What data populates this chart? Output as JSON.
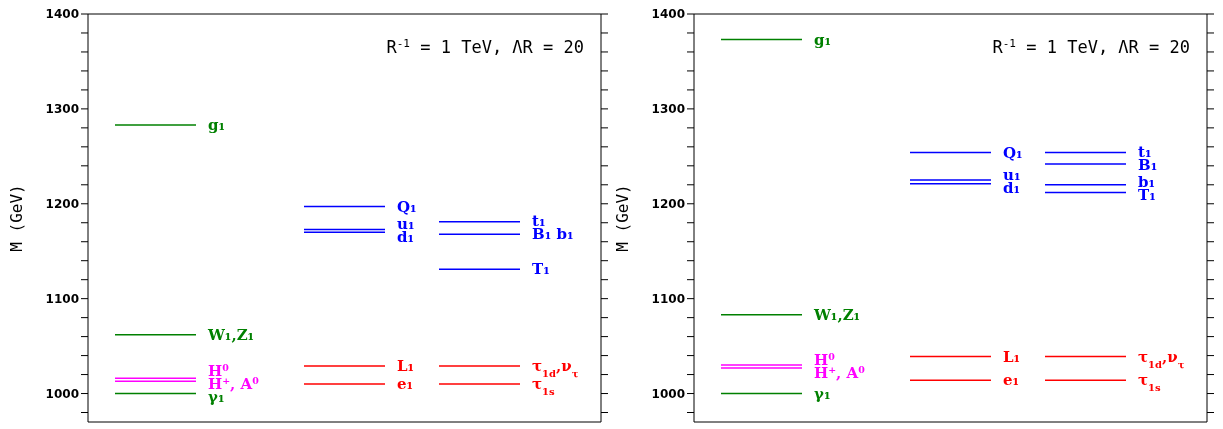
{
  "chart_data": [
    {
      "type": "line",
      "ylabel": "M (GeV)",
      "annotations": [
        "R$^{-1}$ = 1 TeV, ΛR = 20"
      ],
      "categories": [
        null,
        null,
        null,
        null,
        null,
        null,
        null,
        null,
        null,
        null,
        null,
        null,
        null,
        null,
        null,
        null,
        null,
        null,
        null,
        null
      ],
      "ylim": [
        970,
        1400
      ],
      "tick_labels": "y",
      "marker": "none",
      "line_style": "solid",
      "yticks": [
        {
          "value": 980,
          "label": null
        },
        1000,
        {
          "value": 1020,
          "label": null
        },
        {
          "value": 1040,
          "label": null
        },
        {
          "value": 1060,
          "label": null
        },
        {
          "value": 1080,
          "label": null
        },
        1100,
        {
          "value": 1120,
          "label": null
        },
        {
          "value": 1140,
          "label": null
        },
        {
          "value": 1160,
          "label": null
        },
        {
          "value": 1180,
          "label": null
        },
        1200,
        {
          "value": 1220,
          "label": null
        },
        {
          "value": 1240,
          "label": null
        },
        {
          "value": 1260,
          "label": null
        },
        {
          "value": 1280,
          "label": null
        },
        1300,
        {
          "value": 1320,
          "label": null
        },
        {
          "value": 1340,
          "label": null
        },
        {
          "value": 1360,
          "label": null
        },
        {
          "value": 1380,
          "label": null
        },
        1400
      ],
      "series": [
        {
          "name": "g₁",
          "color": "#008000",
          "values": [
            null,
            1283,
            1283,
            1283,
            1283,
            null,
            null,
            null,
            null,
            null,
            null,
            null,
            null,
            null,
            null,
            null,
            null,
            null,
            null,
            null
          ]
        },
        {
          "name": "W₁,Z₁",
          "color": "#008000",
          "values": [
            null,
            1062,
            1062,
            1062,
            1062,
            null,
            null,
            null,
            null,
            null,
            null,
            null,
            null,
            null,
            null,
            null,
            null,
            null,
            null,
            null
          ]
        },
        {
          "name": "H⁰",
          "color": "#ff00ff",
          "values": [
            null,
            1016,
            1016,
            1016,
            1016,
            null,
            null,
            null,
            null,
            null,
            null,
            null,
            null,
            null,
            null,
            null,
            null,
            null,
            null,
            null
          ]
        },
        {
          "name": "H⁺, A⁰",
          "color": "#ff00ff",
          "values": [
            null,
            1013,
            1013,
            1013,
            1013,
            null,
            null,
            null,
            null,
            null,
            null,
            null,
            null,
            null,
            null,
            null,
            null,
            null,
            null,
            null
          ]
        },
        {
          "name": "γ₁",
          "color": "#008000",
          "values": [
            null,
            1000,
            1000,
            1000,
            1000,
            null,
            null,
            null,
            null,
            null,
            null,
            null,
            null,
            null,
            null,
            null,
            null,
            null,
            null,
            null
          ]
        },
        {
          "name": "Q₁",
          "color": "#0000ff",
          "values": [
            null,
            null,
            null,
            null,
            null,
            null,
            null,
            null,
            1197,
            1197,
            1197,
            1197,
            null,
            null,
            null,
            null,
            null,
            null,
            null,
            null
          ]
        },
        {
          "name": "u₁",
          "color": "#0000ff",
          "values": [
            null,
            null,
            null,
            null,
            null,
            null,
            null,
            null,
            1173,
            1173,
            1173,
            1173,
            null,
            null,
            null,
            null,
            null,
            null,
            null,
            null
          ]
        },
        {
          "name": "d₁",
          "color": "#0000ff",
          "values": [
            null,
            null,
            null,
            null,
            null,
            null,
            null,
            null,
            1170,
            1170,
            1170,
            1170,
            null,
            null,
            null,
            null,
            null,
            null,
            null,
            null
          ]
        },
        {
          "name": "L₁",
          "color": "#ff0000",
          "values": [
            null,
            null,
            null,
            null,
            null,
            null,
            null,
            null,
            1029,
            1029,
            1029,
            1029,
            null,
            null,
            null,
            null,
            null,
            null,
            null,
            null
          ]
        },
        {
          "name": "e₁",
          "color": "#ff0000",
          "values": [
            null,
            null,
            null,
            null,
            null,
            null,
            null,
            null,
            1010,
            1010,
            1010,
            1010,
            null,
            null,
            null,
            null,
            null,
            null,
            null,
            null
          ]
        },
        {
          "name": "t₁",
          "color": "#0000ff",
          "values": [
            null,
            null,
            null,
            null,
            null,
            null,
            null,
            null,
            null,
            null,
            null,
            null,
            null,
            1181,
            1181,
            1181,
            1181,
            null,
            null,
            null
          ]
        },
        {
          "name": "B₁ b₁",
          "color": "#0000ff",
          "values": [
            null,
            null,
            null,
            null,
            null,
            null,
            null,
            null,
            null,
            null,
            null,
            null,
            null,
            1168,
            1168,
            1168,
            1168,
            null,
            null,
            null
          ]
        },
        {
          "name": "T₁",
          "color": "#0000ff",
          "values": [
            null,
            null,
            null,
            null,
            null,
            null,
            null,
            null,
            null,
            null,
            null,
            null,
            null,
            1131,
            1131,
            1131,
            1131,
            null,
            null,
            null
          ]
        },
        {
          "name": "τ$_{1d}$,ν$_{τ}$",
          "color": "#ff0000",
          "values": [
            null,
            null,
            null,
            null,
            null,
            null,
            null,
            null,
            null,
            null,
            null,
            null,
            null,
            1029,
            1029,
            1029,
            1029,
            null,
            null,
            null
          ]
        },
        {
          "name": "τ$_{1s}$",
          "color": "#ff0000",
          "values": [
            null,
            null,
            null,
            null,
            null,
            null,
            null,
            null,
            null,
            null,
            null,
            null,
            null,
            1010,
            1010,
            1010,
            1010,
            null,
            null,
            null
          ]
        }
      ]
    },
    {
      "type": "line",
      "ylabel": "M (GeV)",
      "annotations": [
        "R$^{-1}$ = 1 TeV, ΛR = 20"
      ],
      "categories": [
        null,
        null,
        null,
        null,
        null,
        null,
        null,
        null,
        null,
        null,
        null,
        null,
        null,
        null,
        null,
        null,
        null,
        null,
        null,
        null
      ],
      "ylim": [
        970,
        1400
      ],
      "tick_labels": "y",
      "marker": "none",
      "line_style": "solid",
      "yticks": [
        {
          "value": 980,
          "label": null
        },
        1000,
        {
          "value": 1020,
          "label": null
        },
        {
          "value": 1040,
          "label": null
        },
        {
          "value": 1060,
          "label": null
        },
        {
          "value": 1080,
          "label": null
        },
        1100,
        {
          "value": 1120,
          "label": null
        },
        {
          "value": 1140,
          "label": null
        },
        {
          "value": 1160,
          "label": null
        },
        {
          "value": 1180,
          "label": null
        },
        1200,
        {
          "value": 1220,
          "label": null
        },
        {
          "value": 1240,
          "label": null
        },
        {
          "value": 1260,
          "label": null
        },
        {
          "value": 1280,
          "label": null
        },
        1300,
        {
          "value": 1320,
          "label": null
        },
        {
          "value": 1340,
          "label": null
        },
        {
          "value": 1360,
          "label": null
        },
        {
          "value": 1380,
          "label": null
        },
        1400
      ],
      "series": [
        {
          "name": "g₁",
          "color": "#008000",
          "values": [
            null,
            1373,
            1373,
            1373,
            1373,
            null,
            null,
            null,
            null,
            null,
            null,
            null,
            null,
            null,
            null,
            null,
            null,
            null,
            null,
            null
          ]
        },
        {
          "name": "W₁,Z₁",
          "color": "#008000",
          "values": [
            null,
            1083,
            1083,
            1083,
            1083,
            null,
            null,
            null,
            null,
            null,
            null,
            null,
            null,
            null,
            null,
            null,
            null,
            null,
            null,
            null
          ]
        },
        {
          "name": "H⁰",
          "color": "#ff00ff",
          "values": [
            null,
            1030,
            1030,
            1030,
            1030,
            null,
            null,
            null,
            null,
            null,
            null,
            null,
            null,
            null,
            null,
            null,
            null,
            null,
            null,
            null
          ]
        },
        {
          "name": "H⁺, A⁰",
          "color": "#ff00ff",
          "values": [
            null,
            1027,
            1027,
            1027,
            1027,
            null,
            null,
            null,
            null,
            null,
            null,
            null,
            null,
            null,
            null,
            null,
            null,
            null,
            null,
            null
          ]
        },
        {
          "name": "γ₁",
          "color": "#008000",
          "values": [
            null,
            1000,
            1000,
            1000,
            1000,
            null,
            null,
            null,
            null,
            null,
            null,
            null,
            null,
            null,
            null,
            null,
            null,
            null,
            null,
            null
          ]
        },
        {
          "name": "Q₁",
          "color": "#0000ff",
          "values": [
            null,
            null,
            null,
            null,
            null,
            null,
            null,
            null,
            1254,
            1254,
            1254,
            1254,
            null,
            null,
            null,
            null,
            null,
            null,
            null,
            null
          ]
        },
        {
          "name": "u₁",
          "color": "#0000ff",
          "values": [
            null,
            null,
            null,
            null,
            null,
            null,
            null,
            null,
            1225,
            1225,
            1225,
            1225,
            null,
            null,
            null,
            null,
            null,
            null,
            null,
            null
          ]
        },
        {
          "name": "d₁",
          "color": "#0000ff",
          "values": [
            null,
            null,
            null,
            null,
            null,
            null,
            null,
            null,
            1221,
            1221,
            1221,
            1221,
            null,
            null,
            null,
            null,
            null,
            null,
            null,
            null
          ]
        },
        {
          "name": "L₁",
          "color": "#ff0000",
          "values": [
            null,
            null,
            null,
            null,
            null,
            null,
            null,
            null,
            1039,
            1039,
            1039,
            1039,
            null,
            null,
            null,
            null,
            null,
            null,
            null,
            null
          ]
        },
        {
          "name": "e₁",
          "color": "#ff0000",
          "values": [
            null,
            null,
            null,
            null,
            null,
            null,
            null,
            null,
            1014,
            1014,
            1014,
            1014,
            null,
            null,
            null,
            null,
            null,
            null,
            null,
            null
          ]
        },
        {
          "name": "t₁",
          "color": "#0000ff",
          "values": [
            null,
            null,
            null,
            null,
            null,
            null,
            null,
            null,
            null,
            null,
            null,
            null,
            null,
            1254,
            1254,
            1254,
            1254,
            null,
            null,
            null
          ]
        },
        {
          "name": "B₁",
          "color": "#0000ff",
          "values": [
            null,
            null,
            null,
            null,
            null,
            null,
            null,
            null,
            null,
            null,
            null,
            null,
            null,
            1242,
            1242,
            1242,
            1242,
            null,
            null,
            null
          ]
        },
        {
          "name": "b₁",
          "color": "#0000ff",
          "values": [
            null,
            null,
            null,
            null,
            null,
            null,
            null,
            null,
            null,
            null,
            null,
            null,
            null,
            1220,
            1220,
            1220,
            1220,
            null,
            null,
            null
          ]
        },
        {
          "name": "T₁",
          "color": "#0000ff",
          "values": [
            null,
            null,
            null,
            null,
            null,
            null,
            null,
            null,
            null,
            null,
            null,
            null,
            null,
            1212,
            1212,
            1212,
            1212,
            null,
            null,
            null
          ]
        },
        {
          "name": "τ$_{1d}$,ν$_{τ}$",
          "color": "#ff0000",
          "values": [
            null,
            null,
            null,
            null,
            null,
            null,
            null,
            null,
            null,
            null,
            null,
            null,
            null,
            1039,
            1039,
            1039,
            1039,
            null,
            null,
            null
          ]
        },
        {
          "name": "τ$_{1s}$",
          "color": "#ff0000",
          "values": [
            null,
            null,
            null,
            null,
            null,
            null,
            null,
            null,
            null,
            null,
            null,
            null,
            null,
            1014,
            1014,
            1014,
            1014,
            null,
            null,
            null
          ]
        }
      ]
    }
  ]
}
